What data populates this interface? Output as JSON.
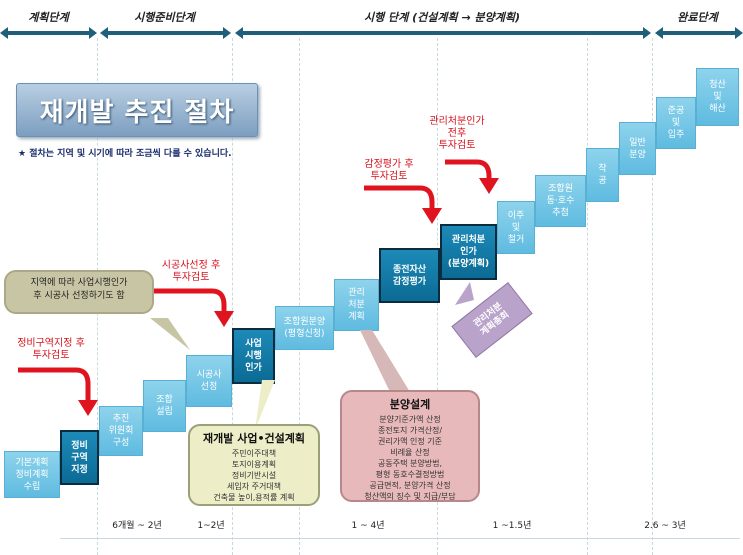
{
  "phases": [
    {
      "label": "계획단계"
    },
    {
      "label": "시행준비단계"
    },
    {
      "label": "시행 단계 (건설계획 → 분양계획)"
    },
    {
      "label": "완료단계"
    }
  ],
  "title": "재개발 추진 절차",
  "note": "★ 절차는 지역 및 시기에 따라 조금씩 다를 수 있습니다.",
  "steps": [
    {
      "label": "기본계획\n정비계획\n수립"
    },
    {
      "label": "정비\n구역\n지정"
    },
    {
      "label": "추진\n위원회\n구성"
    },
    {
      "label": "조합\n설립"
    },
    {
      "label": "시공사\n선정"
    },
    {
      "label": "사업\n시행\n인가"
    },
    {
      "label": "조합원분양\n(평형신청)"
    },
    {
      "label": "관리\n처분\n계획"
    },
    {
      "label": "종전자산\n감정평가"
    },
    {
      "label": "관리처분\n인가\n(분양계획)"
    },
    {
      "label": "이주\n및\n철거"
    },
    {
      "label": "조합원\n동·호수\n추첨"
    },
    {
      "label": "착\n공"
    },
    {
      "label": "일반\n분양"
    },
    {
      "label": "준공\n및\n입주"
    },
    {
      "label": "청산\n및\n해산"
    }
  ],
  "review_notes": [
    {
      "label": "정비구역지정 후\n투자검토"
    },
    {
      "label": "시공사선정 후\n투자검토"
    },
    {
      "label": "감정평가 후\n투자검토"
    },
    {
      "label": "관리처분인가\n전후\n투자검토"
    }
  ],
  "callouts": {
    "contractor": "지역에 따라 사업시행인가\n후 시공사 선정하기도 함",
    "construction_title": "재개발 사업•건설계획",
    "construction_items": [
      "주민이주대책",
      "토지이용계획",
      "정비기반시설",
      "세입자 주거대책",
      "건축물 높이,용적률 계획"
    ],
    "sale_title": "분양설계",
    "sale_items": [
      "분양기준가액 산정",
      "종전토지 가격산정/",
      "권리가액 인정 기준",
      "비례율 산정",
      "공동주택 분양방법,",
      "평형 동호수결정방법",
      "공급면적, 분양가격 산정",
      "청산액의 징수 및 지급/부담"
    ],
    "meeting": "관리처분\n계획총회"
  },
  "durations": [
    {
      "label": "6개월 ~ 2년"
    },
    {
      "label": "1~2년"
    },
    {
      "label": "1 ~ 4년"
    },
    {
      "label": "1 ~1.5년"
    },
    {
      "label": "2.6 ~ 3년"
    }
  ],
  "colors": {
    "step_light": "#6cc3e6",
    "step_dark": "#0b6b95",
    "arrow": "#e0141e",
    "phase_bar": "#1f5f7a"
  }
}
